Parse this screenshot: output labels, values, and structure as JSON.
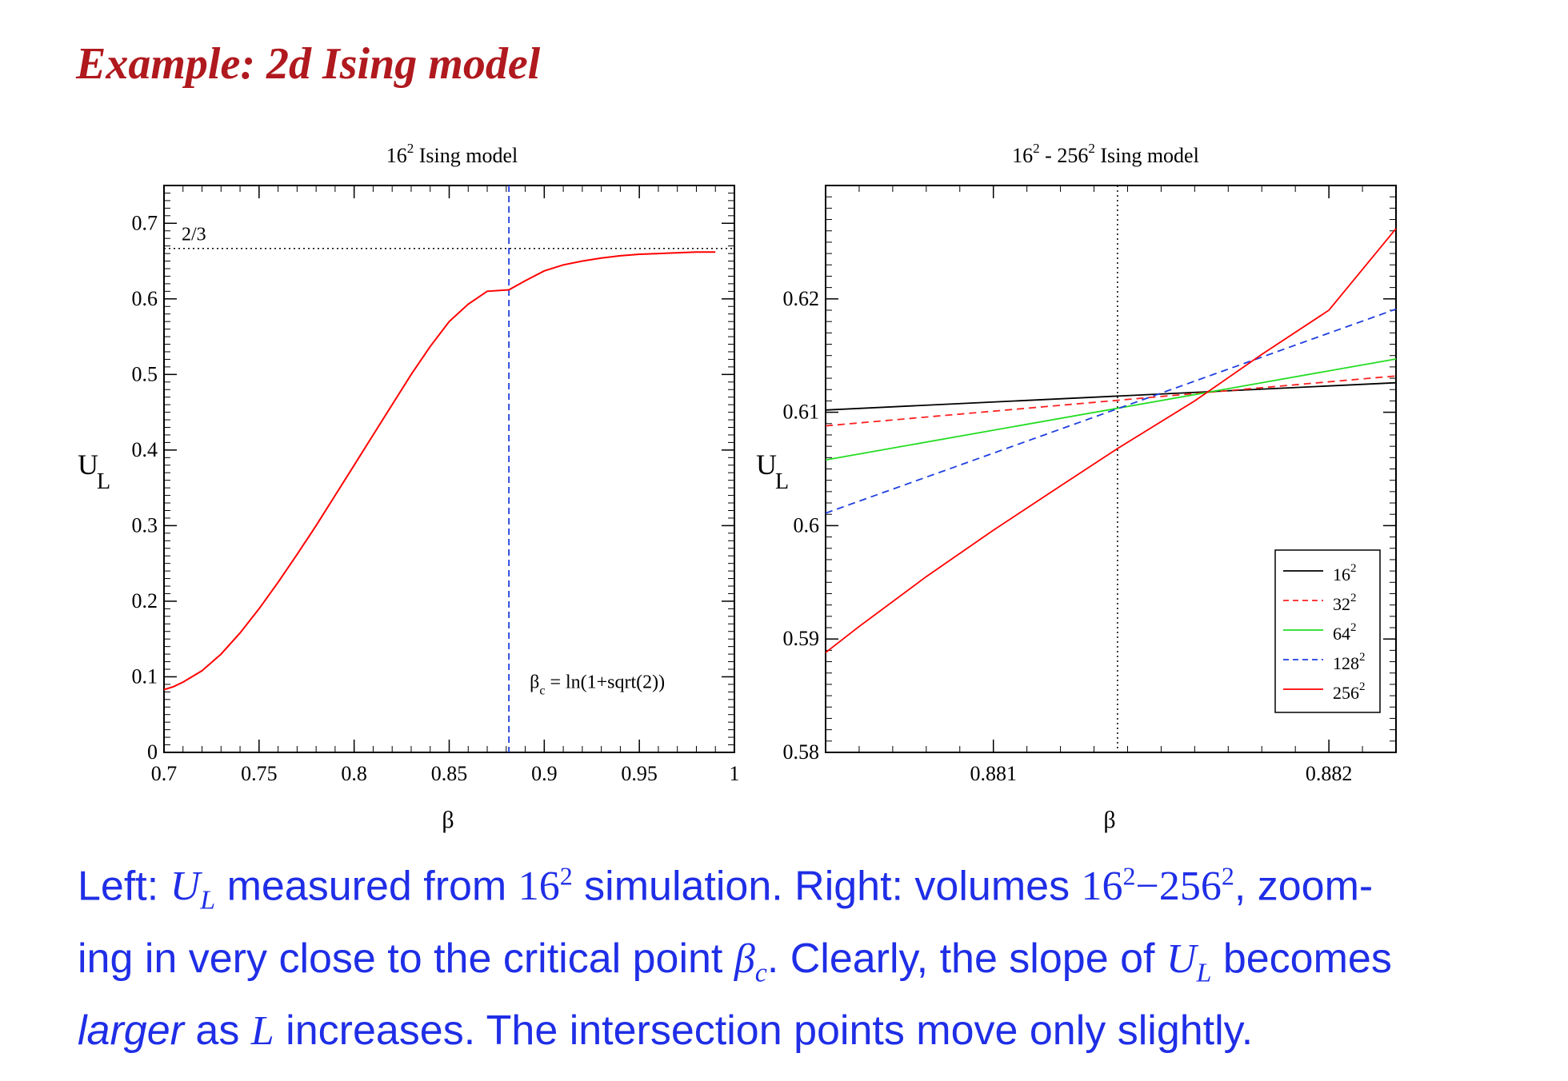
{
  "slide": {
    "title": "Example: 2d Ising model"
  },
  "caption": {
    "t1": "Left: ",
    "UL_U": "U",
    "UL_sub": "L",
    "t2": " measured from ",
    "n16": "16",
    "sup2": "2",
    "t3": " simulation. Right: volumes ",
    "dash": "−",
    "n256": "256",
    "t4": ", zoom-",
    "t5": "ing in very close to the critical point ",
    "beta": "β",
    "c": "c",
    "t6": ". Clearly, the slope of ",
    "t7": " becomes",
    "larger": "larger",
    "t8": " as ",
    "L": "L",
    "t9": " increases. The intersection points move only slightly."
  },
  "chart_data": [
    {
      "type": "line",
      "title_base": "16",
      "title_sup": "2",
      "title_rest": " Ising model",
      "xlabel": "β",
      "ylabel": "U",
      "ylabel_sub": "L",
      "xlim": [
        0.7,
        1.0
      ],
      "ylim": [
        0,
        0.75
      ],
      "xticks": [
        0.7,
        0.75,
        0.8,
        0.85,
        0.9,
        0.95,
        1.0
      ],
      "xtick_labels": [
        "0.7",
        "0.75",
        "0.8",
        "0.85",
        "0.9",
        "0.95",
        "1"
      ],
      "yticks": [
        0,
        0.1,
        0.2,
        0.3,
        0.4,
        0.5,
        0.6,
        0.7
      ],
      "ytick_labels": [
        "0",
        "0.1",
        "0.2",
        "0.3",
        "0.4",
        "0.5",
        "0.6",
        "0.7"
      ],
      "hline": {
        "y": 0.6667,
        "label": "2/3",
        "style": "dotted",
        "color": "#000000"
      },
      "vline": {
        "x": 0.8814,
        "style": "dashed",
        "color": "#1f3fe0"
      },
      "annotation": {
        "base": "β",
        "sub": "c",
        "rest": " = ln(1+sqrt(2))"
      },
      "grid": false,
      "series": [
        {
          "color": "#ff0000",
          "style": "solid",
          "x": [
            0.7,
            0.705,
            0.71,
            0.72,
            0.73,
            0.74,
            0.75,
            0.76,
            0.77,
            0.78,
            0.79,
            0.8,
            0.81,
            0.82,
            0.83,
            0.84,
            0.85,
            0.86,
            0.87,
            0.8814,
            0.89,
            0.9,
            0.91,
            0.92,
            0.93,
            0.94,
            0.95,
            0.96,
            0.97,
            0.98,
            0.99
          ],
          "y": [
            0.083,
            0.087,
            0.093,
            0.108,
            0.13,
            0.158,
            0.19,
            0.225,
            0.262,
            0.3,
            0.34,
            0.38,
            0.42,
            0.46,
            0.5,
            0.537,
            0.57,
            0.593,
            0.61,
            0.612,
            0.624,
            0.637,
            0.645,
            0.65,
            0.654,
            0.657,
            0.659,
            0.66,
            0.661,
            0.662,
            0.662
          ]
        }
      ]
    },
    {
      "type": "line",
      "title_base": "16",
      "title_sup": "2",
      "title_mid": " - 256",
      "title_sup2": "2",
      "title_rest": " Ising model",
      "xlabel": "β",
      "ylabel": "U",
      "ylabel_sub": "L",
      "xlim": [
        0.8805,
        0.8822
      ],
      "ylim": [
        0.58,
        0.63
      ],
      "xticks": [
        0.881,
        0.882
      ],
      "xtick_labels": [
        "0.881",
        "0.882"
      ],
      "yticks": [
        0.58,
        0.59,
        0.6,
        0.61,
        0.62
      ],
      "ytick_labels": [
        "0.58",
        "0.59",
        "0.6",
        "0.61",
        "0.62"
      ],
      "vline": {
        "x": 0.88137,
        "style": "dotted",
        "color": "#000000"
      },
      "legend_position": "bottom-right",
      "grid": false,
      "series": [
        {
          "name": "16",
          "sup": "2",
          "color": "#000000",
          "style": "solid",
          "x": [
            0.8805,
            0.8822
          ],
          "y": [
            0.6102,
            0.6126
          ]
        },
        {
          "name": "32",
          "sup": "2",
          "color": "#ff2020",
          "style": "dashed",
          "x": [
            0.8805,
            0.8822
          ],
          "y": [
            0.6088,
            0.6132
          ]
        },
        {
          "name": "64",
          "sup": "2",
          "color": "#22dd22",
          "style": "solid",
          "x": [
            0.8805,
            0.8822
          ],
          "y": [
            0.6058,
            0.6147
          ]
        },
        {
          "name": "128",
          "sup": "2",
          "color": "#1f3fe0",
          "style": "dashed",
          "x": [
            0.8805,
            0.8822
          ],
          "y": [
            0.6011,
            0.6191
          ]
        },
        {
          "name": "256",
          "sup": "2",
          "color": "#ff0000",
          "style": "solid",
          "x": [
            0.8805,
            0.8806,
            0.8808,
            0.881,
            0.8812,
            0.88137,
            0.8816,
            0.8818,
            0.882,
            0.8822
          ],
          "y": [
            0.5888,
            0.5911,
            0.5955,
            0.5996,
            0.6035,
            0.6068,
            0.611,
            0.6151,
            0.619,
            0.6262
          ]
        }
      ]
    }
  ]
}
